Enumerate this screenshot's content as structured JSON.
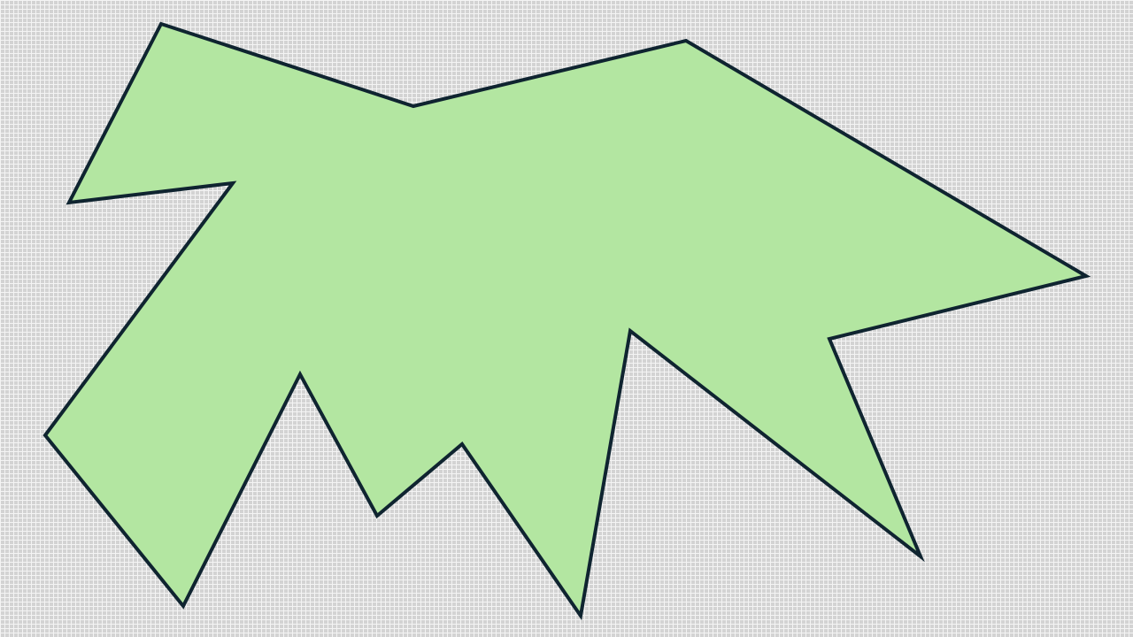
{
  "shape": {
    "kind": "polygon",
    "fill_color": "#b3e6a1",
    "stroke_color": "#0f2430"
  }
}
